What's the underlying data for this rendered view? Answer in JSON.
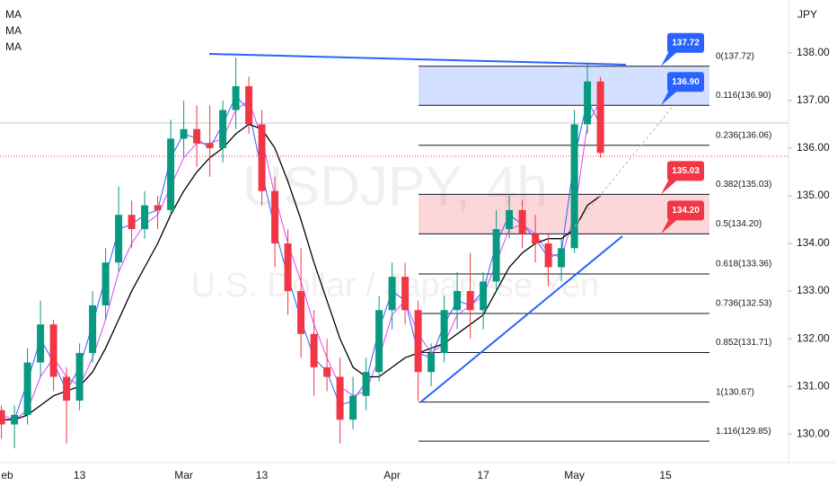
{
  "chart_data": {
    "type": "candlestick",
    "title": "USDJPY, 4h",
    "subtitle": "U.S. Dollar / Japanese Yen",
    "currency": "JPY",
    "categories": [
      "eb",
      null,
      null,
      null,
      null,
      null,
      "13",
      null,
      null,
      null,
      null,
      null,
      null,
      null,
      "Mar",
      null,
      null,
      null,
      null,
      null,
      "13",
      null,
      null,
      null,
      null,
      null,
      null,
      null,
      null,
      null,
      "Apr",
      null,
      null,
      null,
      null,
      null,
      null,
      "17",
      null,
      null,
      null,
      null,
      null,
      null,
      "May",
      null,
      null,
      null,
      null,
      null,
      null,
      "15"
    ],
    "open": [
      130.5,
      130.2,
      130.4,
      131.5,
      132.3,
      131.2,
      130.7,
      131.7,
      132.7,
      133.6,
      134.6,
      134.3,
      134.8,
      134.7,
      136.2,
      136.4,
      136.1,
      136.0,
      136.8,
      137.3,
      136.5,
      135.1,
      134.0,
      133.0,
      132.1,
      131.4,
      131.2,
      130.3,
      130.8,
      131.3,
      132.6,
      133.3,
      132.6,
      131.3,
      131.7,
      132.6,
      133.0,
      132.6,
      133.2,
      134.3,
      134.7,
      134.2,
      134.0,
      133.5,
      133.9,
      136.5,
      137.4,
      null,
      null,
      null,
      null,
      null
    ],
    "high": [
      130.6,
      130.6,
      131.8,
      132.8,
      132.4,
      131.4,
      131.9,
      133.0,
      133.9,
      135.2,
      134.9,
      135.1,
      135.0,
      136.6,
      137.0,
      136.9,
      136.9,
      137.0,
      137.9,
      137.5,
      136.8,
      135.4,
      134.3,
      133.9,
      132.6,
      132.0,
      131.6,
      131.2,
      131.6,
      132.9,
      133.6,
      133.6,
      132.8,
      131.9,
      132.9,
      133.4,
      133.8,
      133.4,
      134.7,
      135.0,
      134.9,
      134.6,
      134.2,
      134.1,
      136.8,
      137.8,
      137.5,
      null,
      null,
      null,
      null,
      null
    ],
    "low": [
      129.9,
      129.7,
      130.2,
      131.2,
      130.9,
      129.8,
      130.5,
      131.5,
      132.4,
      133.4,
      133.9,
      134.1,
      134.3,
      134.6,
      135.8,
      135.6,
      135.4,
      135.7,
      136.4,
      136.3,
      134.8,
      133.5,
      132.5,
      131.6,
      130.8,
      130.9,
      129.8,
      130.1,
      130.5,
      131.1,
      132.2,
      132.3,
      130.7,
      131.0,
      131.5,
      132.2,
      132.0,
      132.2,
      133.0,
      134.1,
      133.9,
      133.6,
      133.1,
      133.2,
      133.8,
      136.3,
      135.8,
      null,
      null,
      null,
      null,
      null
    ],
    "close": [
      130.2,
      130.4,
      131.5,
      132.3,
      131.2,
      130.7,
      131.7,
      132.7,
      133.6,
      134.6,
      134.3,
      134.8,
      134.7,
      136.2,
      136.4,
      136.1,
      136.0,
      136.8,
      137.3,
      136.5,
      135.1,
      134.0,
      133.0,
      132.1,
      131.4,
      131.2,
      130.3,
      130.8,
      131.3,
      132.6,
      133.3,
      132.6,
      131.3,
      131.7,
      132.6,
      133.0,
      132.6,
      133.2,
      134.3,
      134.7,
      134.2,
      134.0,
      133.5,
      133.9,
      136.5,
      137.4,
      135.9,
      null,
      null,
      null,
      null,
      null
    ],
    "up_color": "#089981",
    "down_color": "#f23645",
    "series": [
      {
        "name": "MA",
        "color": "#2962ff",
        "values": [
          130.3,
          130.3,
          131.1,
          132.0,
          131.5,
          130.9,
          131.4,
          132.3,
          133.3,
          134.3,
          134.4,
          134.6,
          134.7,
          135.8,
          136.3,
          136.2,
          136.0,
          136.5,
          137.1,
          136.8,
          135.5,
          134.3,
          133.3,
          132.4,
          131.6,
          131.3,
          130.6,
          130.7,
          131.1,
          132.2,
          133.0,
          132.8,
          131.7,
          131.6,
          132.3,
          132.8,
          132.7,
          133.0,
          134.0,
          134.6,
          134.4,
          134.1,
          133.7,
          133.8,
          135.8,
          137.0,
          136.5,
          null,
          null,
          null,
          null,
          null
        ]
      },
      {
        "name": "MA",
        "color": "#e040fb",
        "values": [
          130.4,
          130.3,
          130.5,
          131.2,
          131.6,
          131.2,
          131.0,
          131.6,
          132.4,
          133.4,
          134.0,
          134.4,
          134.6,
          135.2,
          135.8,
          136.1,
          136.1,
          136.2,
          136.8,
          137.0,
          136.2,
          135.0,
          134.0,
          133.2,
          132.3,
          131.6,
          131.0,
          130.8,
          130.9,
          131.6,
          132.5,
          132.8,
          132.1,
          131.7,
          131.9,
          132.5,
          132.7,
          132.9,
          133.6,
          134.3,
          134.4,
          134.2,
          133.8,
          133.7,
          134.6,
          136.5,
          137.0,
          null,
          null,
          null,
          null,
          null
        ]
      },
      {
        "name": "MA",
        "color": "#000000",
        "values": [
          130.3,
          130.3,
          130.4,
          130.6,
          130.8,
          130.9,
          131.0,
          131.3,
          131.8,
          132.4,
          133.0,
          133.5,
          134.0,
          134.6,
          135.1,
          135.5,
          135.8,
          136.0,
          136.3,
          136.5,
          136.4,
          136.0,
          135.3,
          134.5,
          133.6,
          132.8,
          132.0,
          131.4,
          131.2,
          131.2,
          131.4,
          131.6,
          131.7,
          131.8,
          131.9,
          132.1,
          132.3,
          132.5,
          133.0,
          133.5,
          133.8,
          134.0,
          134.1,
          134.1,
          134.3,
          134.8,
          135.0,
          null,
          null,
          null,
          null,
          null
        ]
      }
    ],
    "ylim": [
      129.4,
      139.11
    ],
    "yticks": [
      {
        "value": 130,
        "label": "130.00"
      },
      {
        "value": 131,
        "label": "131.00"
      },
      {
        "value": 132,
        "label": "132.00"
      },
      {
        "value": 133,
        "label": "133.00"
      },
      {
        "value": 134,
        "label": "134.00"
      },
      {
        "value": 135,
        "label": "135.00"
      },
      {
        "value": 136,
        "label": "136.00"
      },
      {
        "value": 137,
        "label": "137.00"
      },
      {
        "value": 138,
        "label": "138.00"
      }
    ],
    "grid": false,
    "fib_levels": {
      "values": [
        137.72,
        136.9,
        136.06,
        135.03,
        134.2,
        133.36,
        132.53,
        131.71,
        130.67,
        129.85
      ],
      "value_labels": [
        "0(137.72)",
        "0.116(136.90)",
        "0.236(136.06)",
        "0.382(135.03)",
        "0.5(134.20)",
        "0.618(133.36)",
        "0.736(132.53)",
        "0.852(131.71)",
        "1(130.67)",
        "1.116(129.85)"
      ]
    },
    "callouts": {
      "values": [
        137.72,
        136.9,
        135.03,
        134.2
      ],
      "value_labels": [
        "137.72",
        "136.90",
        "135.03",
        "134.20"
      ],
      "colors": [
        "#2962ff",
        "#2962ff",
        "#f23645",
        "#f23645"
      ]
    }
  }
}
